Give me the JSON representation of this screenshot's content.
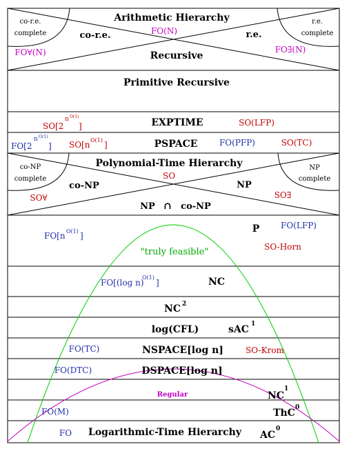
{
  "sections": {
    "arith": {
      "title": "Arithmetic Hierarchy",
      "core_complete": "co-r.e.",
      "core_complete_2": "complete",
      "core": "co-r.e.",
      "fo_n": "FO(N)",
      "re": "r.e.",
      "re_complete": "r.e.",
      "re_complete_2": "complete",
      "fo_forall_n": "FO∀(N)",
      "recursive": "Recursive",
      "fo_exists_n": "FO∃(N)"
    },
    "prim": {
      "title": "Primitive Recursive"
    },
    "exptime": {
      "so_2": "SO[2",
      "so_2_exp": "n",
      "so_2_exp2": "O(1)",
      "so_2_close": "]",
      "title": "EXPTIME",
      "so_lfp": "SO(LFP)"
    },
    "pspace": {
      "fo_2": "FO[2",
      "fo_2_exp": "n",
      "fo_2_exp2": "O(1)",
      "fo_2_close": "]",
      "so_n": "SO[n",
      "so_n_exp": "O(1)",
      "so_n_close": "]",
      "title": "PSPACE",
      "fo_pfp": "FO(PFP)",
      "so_tc": "SO(TC)"
    },
    "ph": {
      "title": "Polynomial-Time Hierarchy",
      "conp_complete": "co-NP",
      "conp_complete_2": "complete",
      "conp": "co-NP",
      "so": "SO",
      "np": "NP",
      "np_complete": "NP",
      "np_complete_2": "complete",
      "so_forall": "SO∀",
      "so_exists": "SO∃",
      "np_cap": "NP",
      "cap": "∩",
      "conp2": "co-NP"
    },
    "p": {
      "fo_n": "FO[n",
      "fo_n_exp": "O(1)",
      "fo_n_close": "]",
      "title": "P",
      "fo_lfp": "FO(LFP)",
      "so_horn": "SO-Horn",
      "feasible": "\"truly feasible\""
    },
    "nc": {
      "fo_log": "FO[(log n)",
      "fo_log_exp": "O(1)",
      "fo_log_close": "]",
      "title": "NC"
    },
    "nc2": {
      "title": "NC",
      "sup": "2"
    },
    "logcfl": {
      "title": "log(CFL)",
      "sac": "sAC",
      "sac_sup": "1"
    },
    "nspace": {
      "fo_tc": "FO(TC)",
      "title": "NSPACE[log n]",
      "so_krom": "SO-Krom"
    },
    "dspace": {
      "fo_dtc": "FO(DTC)",
      "title": "DSPACE[log n]"
    },
    "nc1": {
      "regular": "Regular",
      "title": "NC",
      "sup": "1"
    },
    "thc": {
      "fo_m": "FO(M)",
      "title": "ThC",
      "sup": "0"
    },
    "lh": {
      "fo": "FO",
      "title": "Logarithmic-Time Hierarchy",
      "ac": "AC",
      "sup": "0"
    }
  },
  "colors": {
    "red": "#c00000",
    "blue": "#1f2ea8",
    "magenta": "#c000c0",
    "green": "#00aa00"
  }
}
